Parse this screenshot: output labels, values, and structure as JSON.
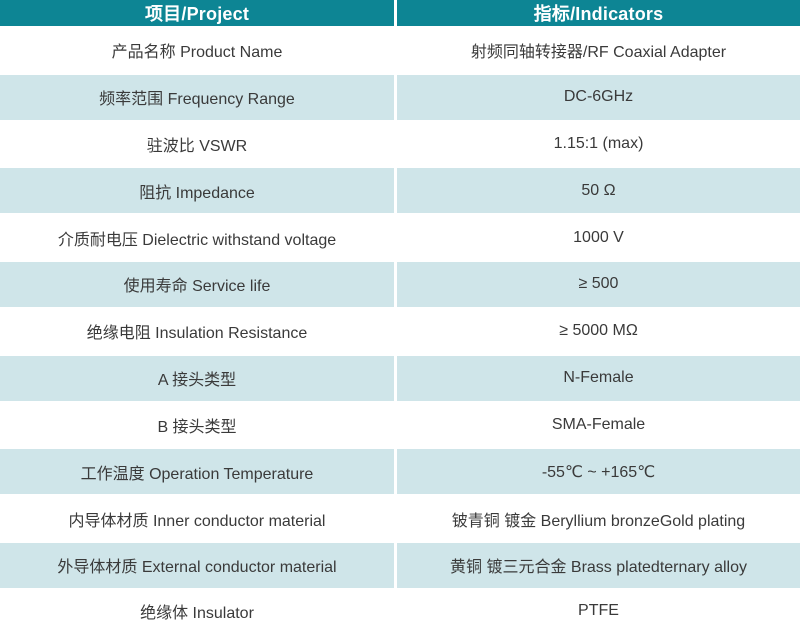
{
  "colors": {
    "header_bg": "#0d8594",
    "alt_row_bg": "#cfe5e9",
    "row_bg": "#ffffff",
    "header_text": "#ffffff",
    "body_text": "#3a3a3a"
  },
  "table": {
    "header": {
      "col1": "项目/Project",
      "col2": "指标/Indicators"
    },
    "rows": [
      {
        "project": "产品名称 Product Name",
        "indicator": "射频同轴转接器/RF Coaxial Adapter"
      },
      {
        "project": "频率范围 Frequency Range",
        "indicator": "DC-6GHz"
      },
      {
        "project": "驻波比 VSWR",
        "indicator": "1.15:1 (max)"
      },
      {
        "project": "阻抗 Impedance",
        "indicator": "50 Ω"
      },
      {
        "project": "介质耐电压 Dielectric withstand voltage",
        "indicator": "1000 V"
      },
      {
        "project": "使用寿命 Service life",
        "indicator": "≥ 500"
      },
      {
        "project": "绝缘电阻 Insulation Resistance",
        "indicator": "≥ 5000 MΩ"
      },
      {
        "project": "A 接头类型",
        "indicator": "N-Female"
      },
      {
        "project": "B 接头类型",
        "indicator": "SMA-Female"
      },
      {
        "project": "工作温度 Operation Temperature",
        "indicator": "-55℃ ~ +165℃"
      },
      {
        "project": "内导体材质 Inner conductor material",
        "indicator": "铍青铜 镀金 Beryllium bronzeGold plating"
      },
      {
        "project": "外导体材质 External conductor material",
        "indicator": "黄铜 镀三元合金 Brass platedternary alloy"
      },
      {
        "project": "绝缘体 Insulator",
        "indicator": "PTFE"
      }
    ]
  }
}
